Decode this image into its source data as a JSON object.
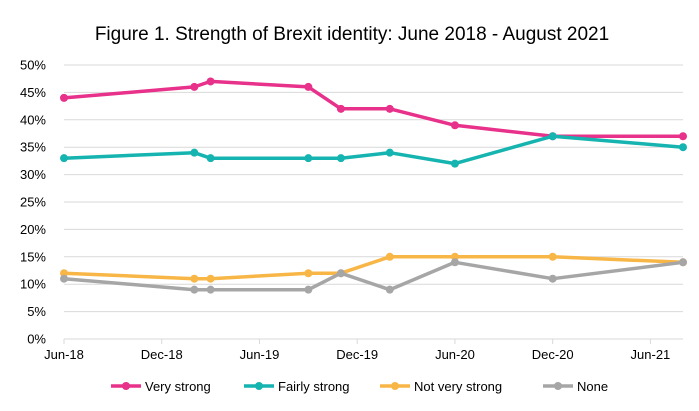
{
  "chart_data": {
    "type": "line",
    "title": "Figure 1. Strength of Brexit identity: June 2018 - August 2021",
    "xlabel": "",
    "ylabel": "",
    "x_tick_labels": [
      "Jun-18",
      "Dec-18",
      "Jun-19",
      "Dec-19",
      "Jun-20",
      "Dec-20",
      "Jun-21"
    ],
    "x_tick_dates": [
      "2018-06",
      "2018-12",
      "2019-06",
      "2019-12",
      "2020-06",
      "2020-12",
      "2021-06"
    ],
    "x_range": [
      "2018-06",
      "2021-08"
    ],
    "y_tick_labels": [
      "0%",
      "5%",
      "10%",
      "15%",
      "20%",
      "25%",
      "30%",
      "35%",
      "40%",
      "45%",
      "50%"
    ],
    "ylim": [
      0,
      50
    ],
    "y_unit": "%",
    "grid": true,
    "legend_position": "bottom",
    "x": [
      "2018-06",
      "2019-02",
      "2019-03",
      "2019-09",
      "2019-11",
      "2020-02",
      "2020-06",
      "2020-12",
      "2021-08"
    ],
    "series": [
      {
        "name": "Very strong",
        "color": "#E8318A",
        "values": [
          44,
          46,
          47,
          46,
          42,
          42,
          39,
          37,
          37
        ]
      },
      {
        "name": "Fairly strong",
        "color": "#16B4B0",
        "values": [
          33,
          34,
          33,
          33,
          33,
          34,
          32,
          37,
          35
        ]
      },
      {
        "name": "Not very strong",
        "color": "#F8B646",
        "values": [
          12,
          11,
          11,
          12,
          12,
          15,
          15,
          15,
          14
        ]
      },
      {
        "name": "None",
        "color": "#A6A6A6",
        "values": [
          11,
          9,
          9,
          9,
          12,
          9,
          14,
          11,
          14
        ]
      }
    ]
  }
}
